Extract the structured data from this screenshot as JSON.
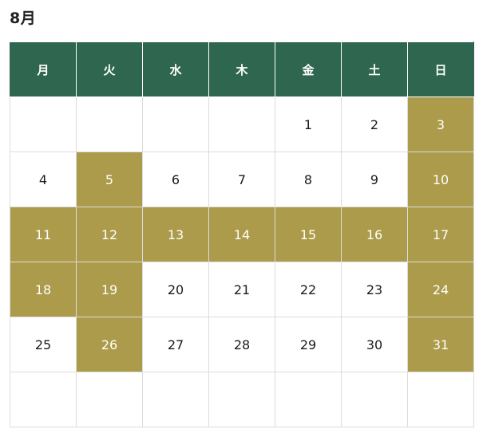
{
  "title": "8月",
  "weekdays": [
    "月",
    "火",
    "水",
    "木",
    "金",
    "土",
    "日"
  ],
  "highlight_color": "#ac9b4a",
  "header_color": "#2f6650",
  "weeks": [
    [
      {
        "d": ""
      },
      {
        "d": ""
      },
      {
        "d": ""
      },
      {
        "d": ""
      },
      {
        "d": "1"
      },
      {
        "d": "2"
      },
      {
        "d": "3",
        "hl": true
      }
    ],
    [
      {
        "d": "4"
      },
      {
        "d": "5",
        "hl": true
      },
      {
        "d": "6"
      },
      {
        "d": "7"
      },
      {
        "d": "8"
      },
      {
        "d": "9"
      },
      {
        "d": "10",
        "hl": true
      }
    ],
    [
      {
        "d": "11",
        "hl": true
      },
      {
        "d": "12",
        "hl": true
      },
      {
        "d": "13",
        "hl": true
      },
      {
        "d": "14",
        "hl": true
      },
      {
        "d": "15",
        "hl": true
      },
      {
        "d": "16",
        "hl": true
      },
      {
        "d": "17",
        "hl": true
      }
    ],
    [
      {
        "d": "18",
        "hl": true
      },
      {
        "d": "19",
        "hl": true
      },
      {
        "d": "20"
      },
      {
        "d": "21"
      },
      {
        "d": "22"
      },
      {
        "d": "23"
      },
      {
        "d": "24",
        "hl": true
      }
    ],
    [
      {
        "d": "25"
      },
      {
        "d": "26",
        "hl": true
      },
      {
        "d": "27"
      },
      {
        "d": "28"
      },
      {
        "d": "29"
      },
      {
        "d": "30"
      },
      {
        "d": "31",
        "hl": true
      }
    ],
    [
      {
        "d": ""
      },
      {
        "d": ""
      },
      {
        "d": ""
      },
      {
        "d": ""
      },
      {
        "d": ""
      },
      {
        "d": ""
      },
      {
        "d": ""
      }
    ]
  ]
}
